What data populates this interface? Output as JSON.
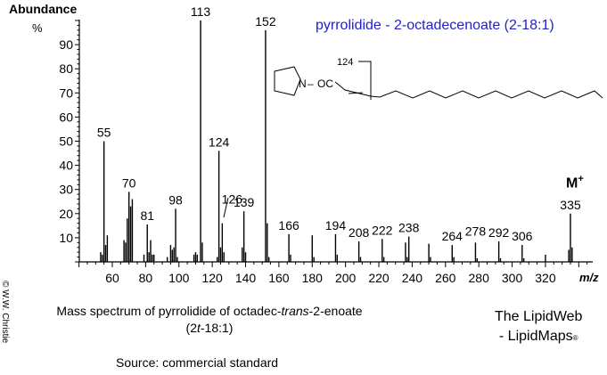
{
  "chart_data": {
    "type": "bar",
    "title": "pyrrolidide - 2-octadecenoate (2-18:1)",
    "xlabel": "m/z",
    "ylabel": "Abundance %",
    "xlim": [
      40,
      350
    ],
    "ylim": [
      0,
      100
    ],
    "x_ticks": [
      60,
      80,
      100,
      120,
      140,
      160,
      180,
      200,
      220,
      240,
      260,
      280,
      300,
      320
    ],
    "y_ticks": [
      10,
      20,
      30,
      40,
      50,
      60,
      70,
      80,
      90
    ],
    "grid": false,
    "peaks": [
      {
        "mz": 53,
        "abundance": 4
      },
      {
        "mz": 54,
        "abundance": 3
      },
      {
        "mz": 55,
        "abundance": 50,
        "label": "55"
      },
      {
        "mz": 56,
        "abundance": 7
      },
      {
        "mz": 57,
        "abundance": 11
      },
      {
        "mz": 67,
        "abundance": 9
      },
      {
        "mz": 68,
        "abundance": 8
      },
      {
        "mz": 69,
        "abundance": 18
      },
      {
        "mz": 70,
        "abundance": 29,
        "label": "70"
      },
      {
        "mz": 71,
        "abundance": 23
      },
      {
        "mz": 72,
        "abundance": 26
      },
      {
        "mz": 79,
        "abundance": 3
      },
      {
        "mz": 81,
        "abundance": 15.5,
        "label": "81"
      },
      {
        "mz": 82,
        "abundance": 4
      },
      {
        "mz": 83,
        "abundance": 9
      },
      {
        "mz": 84,
        "abundance": 3
      },
      {
        "mz": 85,
        "abundance": 3
      },
      {
        "mz": 93,
        "abundance": 2
      },
      {
        "mz": 95,
        "abundance": 7
      },
      {
        "mz": 96,
        "abundance": 5
      },
      {
        "mz": 97,
        "abundance": 6
      },
      {
        "mz": 98,
        "abundance": 22,
        "label": "98"
      },
      {
        "mz": 99,
        "abundance": 2
      },
      {
        "mz": 109,
        "abundance": 3
      },
      {
        "mz": 110,
        "abundance": 4
      },
      {
        "mz": 111,
        "abundance": 3
      },
      {
        "mz": 113,
        "abundance": 100,
        "label": "113"
      },
      {
        "mz": 114,
        "abundance": 8
      },
      {
        "mz": 123,
        "abundance": 2
      },
      {
        "mz": 124,
        "abundance": 46,
        "label": "124"
      },
      {
        "mz": 125,
        "abundance": 6
      },
      {
        "mz": 126,
        "abundance": 16,
        "label": "126"
      },
      {
        "mz": 127,
        "abundance": 4
      },
      {
        "mz": 138,
        "abundance": 6
      },
      {
        "mz": 139,
        "abundance": 21,
        "label": "139"
      },
      {
        "mz": 140,
        "abundance": 4
      },
      {
        "mz": 152,
        "abundance": 96,
        "label": "152"
      },
      {
        "mz": 153,
        "abundance": 16
      },
      {
        "mz": 154,
        "abundance": 2
      },
      {
        "mz": 166,
        "abundance": 11.5,
        "label": "166"
      },
      {
        "mz": 167,
        "abundance": 3
      },
      {
        "mz": 180,
        "abundance": 11
      },
      {
        "mz": 181,
        "abundance": 2
      },
      {
        "mz": 194,
        "abundance": 11.5,
        "label": "194"
      },
      {
        "mz": 195,
        "abundance": 3
      },
      {
        "mz": 208,
        "abundance": 8.5,
        "label": "208"
      },
      {
        "mz": 209,
        "abundance": 2
      },
      {
        "mz": 222,
        "abundance": 9.5,
        "label": "222"
      },
      {
        "mz": 223,
        "abundance": 2
      },
      {
        "mz": 236,
        "abundance": 8
      },
      {
        "mz": 237,
        "abundance": 2
      },
      {
        "mz": 238,
        "abundance": 10.5,
        "label": "238"
      },
      {
        "mz": 250,
        "abundance": 7.5
      },
      {
        "mz": 251,
        "abundance": 2
      },
      {
        "mz": 264,
        "abundance": 7,
        "label": "264"
      },
      {
        "mz": 265,
        "abundance": 2
      },
      {
        "mz": 278,
        "abundance": 8,
        "label": "278"
      },
      {
        "mz": 279,
        "abundance": 1.5
      },
      {
        "mz": 292,
        "abundance": 8.5,
        "label": "292"
      },
      {
        "mz": 293,
        "abundance": 1.5
      },
      {
        "mz": 306,
        "abundance": 7,
        "label": "306"
      },
      {
        "mz": 307,
        "abundance": 1.5
      },
      {
        "mz": 320,
        "abundance": 3
      },
      {
        "mz": 334,
        "abundance": 5
      },
      {
        "mz": 335,
        "abundance": 20,
        "label": "335"
      },
      {
        "mz": 336,
        "abundance": 6
      }
    ],
    "annotations": [
      "M+",
      "124 fragment marker on structure"
    ]
  },
  "axis": {
    "y_title": "Abundance",
    "y_unit": "%",
    "x_title": "m/z"
  },
  "title": "pyrrolidide - 2-octadecenoate (2-18:1)",
  "molecular_ion_label": "M",
  "molecular_ion_sup": "+",
  "structure": {
    "fragment_label": "124",
    "n_label": "N",
    "dash": "–",
    "oc_label": "OC"
  },
  "copyright": "© W.W. Christie",
  "caption": {
    "line1_prefix": "Mass spectrum of pyrrolidide of octadec-",
    "line1_italic": "trans",
    "line1_suffix": "-2-enoate",
    "line2_prefix": "(2",
    "line2_italic": "t",
    "line2_suffix": "-18:1)"
  },
  "source": "Source:   commercial standard",
  "brand": {
    "line1": "The LipidWeb",
    "line2": "- LipidMaps",
    "reg": "®"
  },
  "colors": {
    "title": "#2222cc",
    "bars": "#000000",
    "axis": "#000000"
  }
}
